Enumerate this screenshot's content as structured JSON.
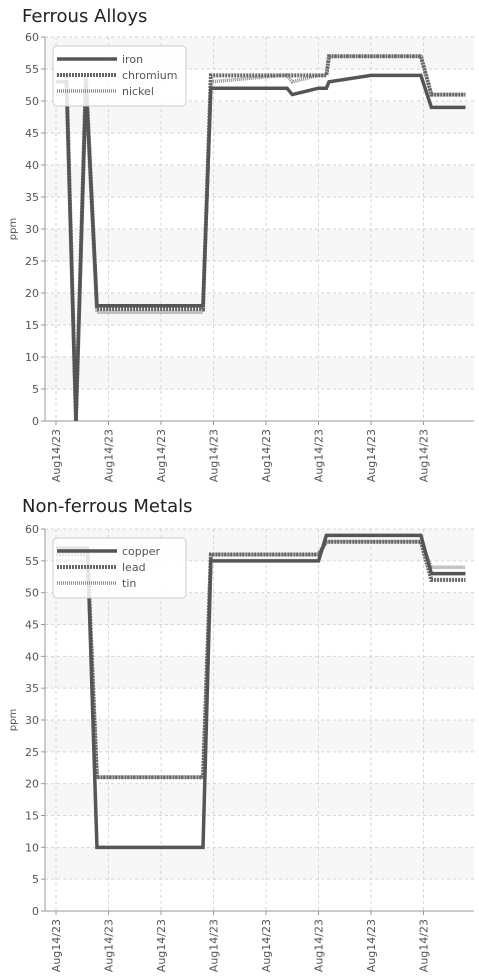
{
  "chart_data": [
    {
      "type": "line",
      "title": "Ferrous Alloys",
      "xlabel": "",
      "ylabel": "ppm",
      "ylim": [
        0,
        60
      ],
      "yticks": [
        0,
        5,
        10,
        15,
        20,
        25,
        30,
        35,
        40,
        45,
        50,
        55,
        60
      ],
      "x_tick_labels": [
        "Aug14/23",
        "Aug14/23",
        "Aug14/23",
        "Aug14/23",
        "Aug14/23",
        "Aug14/23",
        "Aug14/23",
        "Aug14/23"
      ],
      "x": [
        0,
        0.2,
        0.38,
        0.57,
        0.78,
        1.35,
        2.8,
        2.95,
        4.3,
        4.4,
        4.5,
        5.0,
        5.15,
        5.2,
        6.0,
        6.05,
        6.2,
        6.95,
        7.15,
        7.8
      ],
      "grid": true,
      "legend_position": "top-left",
      "series": [
        {
          "name": "iron",
          "color": "#555555",
          "values": [
            53,
            53,
            0,
            53,
            18,
            18,
            18,
            52,
            52,
            52,
            51,
            52,
            52,
            53,
            54,
            54,
            54,
            54,
            49,
            49
          ]
        },
        {
          "name": "chromium",
          "color": "#666666",
          "values": [
            54,
            54,
            0,
            54,
            17.5,
            17.5,
            17.5,
            54,
            54,
            54,
            54,
            54,
            54,
            57,
            57,
            57,
            57,
            57,
            51,
            51
          ]
        },
        {
          "name": "nickel",
          "color": "#8a8a8a",
          "values": [
            51,
            51,
            0,
            51,
            17,
            17,
            17,
            53,
            54,
            54,
            53,
            54,
            54,
            57,
            57,
            57,
            57,
            57,
            51,
            51
          ]
        }
      ]
    },
    {
      "type": "line",
      "title": "Non-ferrous Metals",
      "xlabel": "",
      "ylabel": "ppm",
      "ylim": [
        0,
        60
      ],
      "yticks": [
        0,
        5,
        10,
        15,
        20,
        25,
        30,
        35,
        40,
        45,
        50,
        55,
        60
      ],
      "x_tick_labels": [
        "Aug14/23",
        "Aug14/23",
        "Aug14/23",
        "Aug14/23",
        "Aug14/23",
        "Aug14/23",
        "Aug14/23",
        "Aug14/23"
      ],
      "x": [
        0,
        0.6,
        0.78,
        1.4,
        2.8,
        2.95,
        4.3,
        5.0,
        5.15,
        6.0,
        6.95,
        7.15,
        7.8
      ],
      "grid": true,
      "legend_position": "top-left",
      "series": [
        {
          "name": "copper",
          "color": "#555555",
          "values": [
            57,
            57,
            10,
            10,
            10,
            55,
            55,
            55,
            59,
            59,
            59,
            53,
            53
          ]
        },
        {
          "name": "lead",
          "color": "#666666",
          "values": [
            56,
            56,
            21,
            21,
            21,
            56,
            56,
            56,
            58,
            58,
            58,
            52,
            52
          ]
        },
        {
          "name": "tin",
          "color": "#8a8a8a",
          "values": [
            55,
            55,
            21,
            21,
            21,
            56,
            56,
            56,
            58,
            58,
            58,
            54,
            54
          ]
        }
      ]
    }
  ]
}
